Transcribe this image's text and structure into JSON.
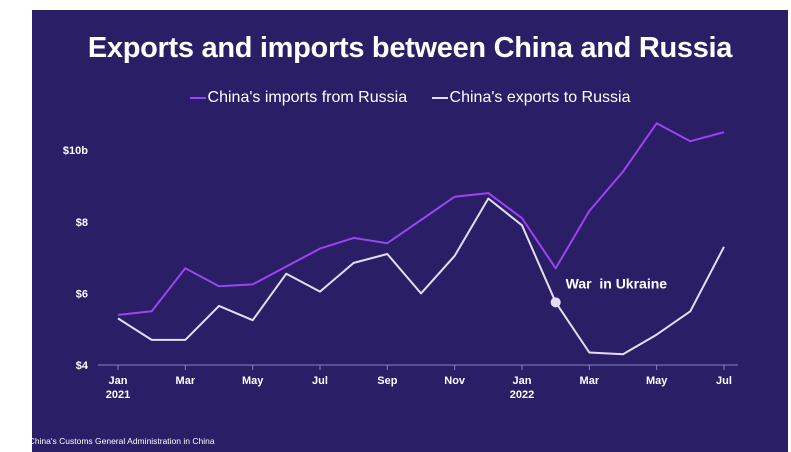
{
  "title": "Exports and imports between China and Russia",
  "legend": [
    {
      "label": "China's imports from Russia",
      "color": "#9a45f0"
    },
    {
      "label": "China's exports to Russia",
      "color": "#e6ddf5"
    }
  ],
  "source": "Data: China's Customs General Administration in China",
  "annotation": {
    "text": "War  in Ukraine",
    "x": "2022-02",
    "y": 5.75
  },
  "colors": {
    "background": "#2a1e67",
    "text": "#ffffff"
  },
  "chart_data": {
    "type": "line",
    "title": "Exports and imports between China and Russia",
    "x": [
      "2021-01",
      "2021-02",
      "2021-03",
      "2021-04",
      "2021-05",
      "2021-06",
      "2021-07",
      "2021-08",
      "2021-09",
      "2021-10",
      "2021-11",
      "2021-12",
      "2022-01",
      "2022-02",
      "2022-03",
      "2022-04",
      "2022-05",
      "2022-06",
      "2022-07"
    ],
    "x_tick_labels": [
      {
        "x": "2021-01",
        "label": "Jan",
        "sub": "2021"
      },
      {
        "x": "2021-03",
        "label": "Mar",
        "sub": ""
      },
      {
        "x": "2021-05",
        "label": "May",
        "sub": ""
      },
      {
        "x": "2021-07",
        "label": "Jul",
        "sub": ""
      },
      {
        "x": "2021-09",
        "label": "Sep",
        "sub": ""
      },
      {
        "x": "2021-11",
        "label": "Nov",
        "sub": ""
      },
      {
        "x": "2022-01",
        "label": "Jan",
        "sub": "2022"
      },
      {
        "x": "2022-03",
        "label": "Mar",
        "sub": ""
      },
      {
        "x": "2022-05",
        "label": "May",
        "sub": ""
      },
      {
        "x": "2022-07",
        "label": "Jul",
        "sub": ""
      }
    ],
    "y_ticks": [
      {
        "value": 4,
        "label": "$4"
      },
      {
        "value": 6,
        "label": "$6"
      },
      {
        "value": 8,
        "label": "$8"
      },
      {
        "value": 10,
        "label": "$10b"
      }
    ],
    "ylim": [
      4,
      11.4
    ],
    "series": [
      {
        "name": "China's imports from Russia",
        "color": "#9a45f0",
        "values": [
          5.4,
          5.5,
          6.7,
          6.2,
          6.25,
          6.75,
          7.25,
          7.55,
          7.4,
          8.05,
          8.7,
          8.8,
          8.1,
          6.7,
          8.3,
          9.4,
          10.75,
          10.25,
          10.5
        ]
      },
      {
        "name": "China's exports to Russia",
        "color": "#e6ddf5",
        "values": [
          5.3,
          4.7,
          4.7,
          5.65,
          5.25,
          6.55,
          6.05,
          6.85,
          7.1,
          6.0,
          7.05,
          8.65,
          7.9,
          5.75,
          4.35,
          4.3,
          4.85,
          5.5,
          7.3
        ]
      }
    ],
    "grid": false,
    "legend_position": "top-center"
  }
}
